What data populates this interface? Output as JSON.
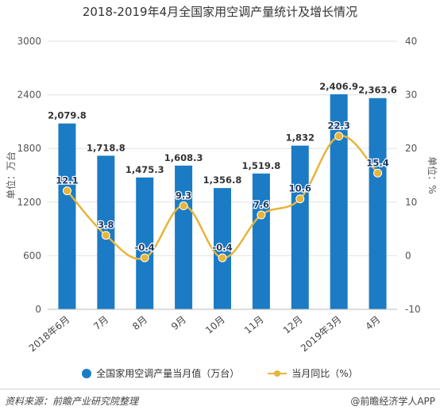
{
  "title": "2018-2019年4月全国家用空调产量统计及增长情况",
  "footer": {
    "source": "资料来源：前瞻产业研究院整理",
    "brand": "@前瞻经济学人APP"
  },
  "watermark": "前瞻产业研究院",
  "legend": {
    "bar_label": "全国家用空调产量当月值（万台）",
    "line_label": "当月同比（%）"
  },
  "chart_data": {
    "type": "bar",
    "title": "2018-2019年4月全国家用空调产量统计及增长情况",
    "categories": [
      "2018年6月",
      "7月",
      "8月",
      "9月",
      "10月",
      "11月",
      "12月",
      "2019年3月",
      "4月"
    ],
    "series": [
      {
        "name": "全国家用空调产量当月值（万台）",
        "type": "bar",
        "axis": "left",
        "values": [
          2079.8,
          1718.8,
          1475.3,
          1608.3,
          1356.8,
          1519.8,
          1832,
          2406.9,
          2363.6
        ],
        "labels": [
          "2,079.8",
          "1,718.8",
          "1,475.3",
          "1,608.3",
          "1,356.8",
          "1,519.8",
          "1,832",
          "2,406.9",
          "2,363.6"
        ]
      },
      {
        "name": "当月同比（%）",
        "type": "line",
        "axis": "right",
        "values": [
          12.1,
          3.8,
          -0.4,
          9.3,
          -0.4,
          7.6,
          10.6,
          22.3,
          15.4
        ],
        "labels": [
          "12.1",
          "3.8",
          "-0.4",
          "9.3",
          "-0.4",
          "7.6",
          "10.6",
          "22.3",
          "15.4"
        ]
      }
    ],
    "ylabel_left": "单位：万台",
    "ylabel_right": "单位：%",
    "ylim_left": [
      0,
      3000
    ],
    "ylim_right": [
      -10,
      40
    ],
    "yticks_left": [
      "0",
      "600",
      "1200",
      "1800",
      "2400",
      "3000"
    ],
    "yticks_right": [
      "-10",
      "0",
      "10",
      "20",
      "30",
      "40"
    ],
    "grid": true,
    "legend_position": "bottom",
    "colors": {
      "bar": "#1b7bc4",
      "line": "#e6b53a",
      "grid": "#e3e3e3"
    }
  }
}
